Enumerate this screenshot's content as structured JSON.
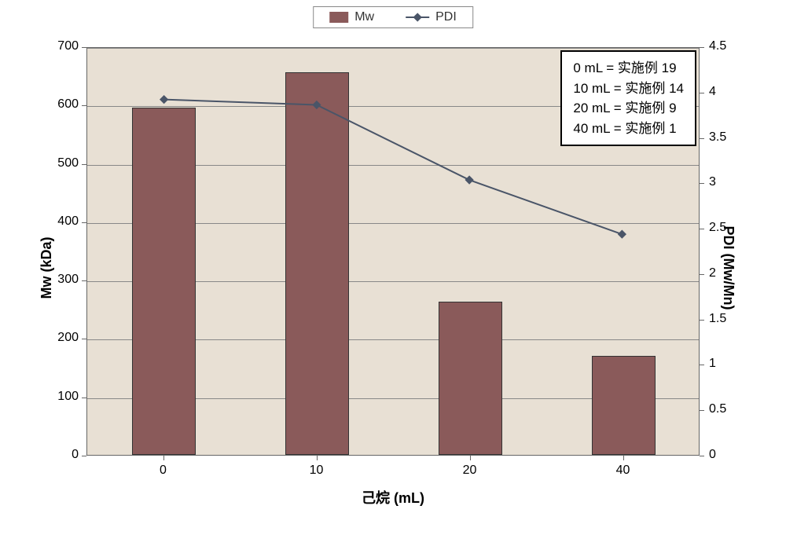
{
  "chart": {
    "type": "bar+line",
    "legend": {
      "bar_label": "Mw",
      "line_label": "PDI",
      "bar_color": "#8a5a5a",
      "line_color": "#4a5568",
      "marker_color": "#4a5568"
    },
    "plot": {
      "background_color": "#e8e0d4",
      "grid_color": "#888888",
      "border_color": "#666666"
    },
    "x": {
      "categories": [
        "0",
        "10",
        "20",
        "40"
      ],
      "title": "己烷 (mL)"
    },
    "y_left": {
      "title": "Mw (kDa)",
      "min": 0,
      "max": 700,
      "step": 100,
      "ticks": [
        "0",
        "100",
        "200",
        "300",
        "400",
        "500",
        "600",
        "700"
      ]
    },
    "y_right": {
      "title": "PDI (Mw/Mn)",
      "min": 0,
      "max": 4.5,
      "step": 0.5,
      "ticks": [
        "0",
        "0.5",
        "1",
        "1.5",
        "2",
        "2.5",
        "3",
        "3.5",
        "4",
        "4.5"
      ]
    },
    "bars": {
      "values": [
        595,
        655,
        263,
        170
      ],
      "color": "#8a5a5a",
      "width_frac": 0.42
    },
    "line": {
      "values": [
        3.93,
        3.87,
        3.04,
        2.44
      ],
      "color": "#4a5568",
      "marker_size": 8,
      "line_width": 2
    },
    "annotation": {
      "lines": [
        "0 mL = 实施例 19",
        "10 mL = 实施例 14",
        "20 mL = 实施例 9",
        "40 mL = 实施例 1"
      ]
    },
    "fonts": {
      "axis_label_size": 16,
      "axis_title_size": 18,
      "legend_size": 16,
      "annotation_size": 17
    }
  }
}
